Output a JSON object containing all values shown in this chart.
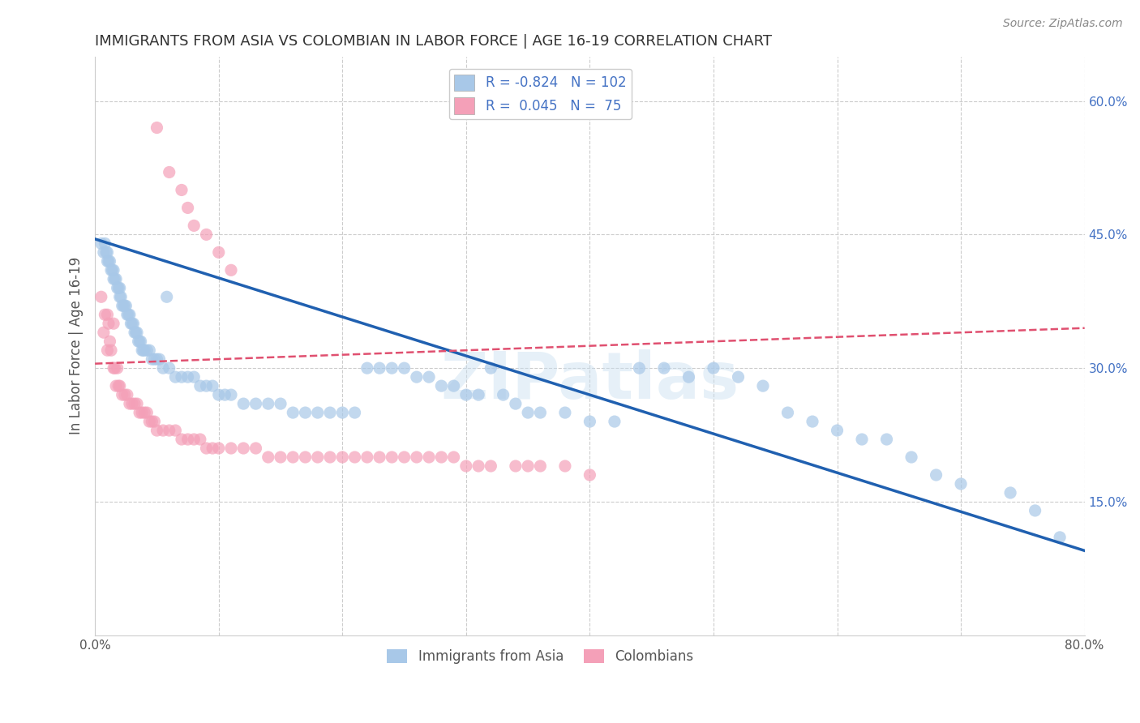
{
  "title": "IMMIGRANTS FROM ASIA VS COLOMBIAN IN LABOR FORCE | AGE 16-19 CORRELATION CHART",
  "source": "Source: ZipAtlas.com",
  "ylabel": "In Labor Force | Age 16-19",
  "xlim": [
    0.0,
    0.8
  ],
  "ylim": [
    0.0,
    0.65
  ],
  "xticks": [
    0.0,
    0.1,
    0.2,
    0.3,
    0.4,
    0.5,
    0.6,
    0.7,
    0.8
  ],
  "xticklabels": [
    "0.0%",
    "",
    "",
    "",
    "",
    "",
    "",
    "",
    "80.0%"
  ],
  "yticks_right": [
    0.15,
    0.3,
    0.45,
    0.6
  ],
  "ytick_right_labels": [
    "15.0%",
    "30.0%",
    "45.0%",
    "60.0%"
  ],
  "legend_blue_r": "-0.824",
  "legend_blue_n": "102",
  "legend_pink_r": "0.045",
  "legend_pink_n": "75",
  "blue_color": "#a8c8e8",
  "pink_color": "#f4a0b8",
  "blue_line_color": "#2060b0",
  "pink_line_color": "#e05070",
  "watermark": "ZIPatlas",
  "blue_trend_start_y": 0.445,
  "blue_trend_end_y": 0.095,
  "pink_trend_start_y": 0.305,
  "pink_trend_end_y": 0.345,
  "blue_scatter_x": [
    0.005,
    0.007,
    0.008,
    0.009,
    0.01,
    0.01,
    0.011,
    0.012,
    0.013,
    0.014,
    0.015,
    0.015,
    0.016,
    0.017,
    0.018,
    0.019,
    0.02,
    0.02,
    0.021,
    0.022,
    0.023,
    0.024,
    0.025,
    0.026,
    0.027,
    0.028,
    0.029,
    0.03,
    0.031,
    0.032,
    0.033,
    0.034,
    0.035,
    0.036,
    0.037,
    0.038,
    0.039,
    0.04,
    0.042,
    0.044,
    0.046,
    0.048,
    0.05,
    0.052,
    0.055,
    0.058,
    0.06,
    0.065,
    0.07,
    0.075,
    0.08,
    0.085,
    0.09,
    0.095,
    0.1,
    0.105,
    0.11,
    0.12,
    0.13,
    0.14,
    0.15,
    0.16,
    0.17,
    0.18,
    0.19,
    0.2,
    0.21,
    0.22,
    0.23,
    0.24,
    0.25,
    0.26,
    0.27,
    0.28,
    0.29,
    0.3,
    0.31,
    0.32,
    0.33,
    0.34,
    0.35,
    0.36,
    0.38,
    0.4,
    0.42,
    0.44,
    0.46,
    0.48,
    0.5,
    0.52,
    0.54,
    0.56,
    0.58,
    0.6,
    0.62,
    0.64,
    0.66,
    0.68,
    0.7,
    0.74,
    0.76,
    0.78
  ],
  "blue_scatter_y": [
    0.44,
    0.43,
    0.44,
    0.43,
    0.43,
    0.42,
    0.42,
    0.42,
    0.41,
    0.41,
    0.41,
    0.4,
    0.4,
    0.4,
    0.39,
    0.39,
    0.39,
    0.38,
    0.38,
    0.37,
    0.37,
    0.37,
    0.37,
    0.36,
    0.36,
    0.36,
    0.35,
    0.35,
    0.35,
    0.34,
    0.34,
    0.34,
    0.33,
    0.33,
    0.33,
    0.32,
    0.32,
    0.32,
    0.32,
    0.32,
    0.31,
    0.31,
    0.31,
    0.31,
    0.3,
    0.38,
    0.3,
    0.29,
    0.29,
    0.29,
    0.29,
    0.28,
    0.28,
    0.28,
    0.27,
    0.27,
    0.27,
    0.26,
    0.26,
    0.26,
    0.26,
    0.25,
    0.25,
    0.25,
    0.25,
    0.25,
    0.25,
    0.3,
    0.3,
    0.3,
    0.3,
    0.29,
    0.29,
    0.28,
    0.28,
    0.27,
    0.27,
    0.3,
    0.27,
    0.26,
    0.25,
    0.25,
    0.25,
    0.24,
    0.24,
    0.3,
    0.3,
    0.29,
    0.3,
    0.29,
    0.28,
    0.25,
    0.24,
    0.23,
    0.22,
    0.22,
    0.2,
    0.18,
    0.17,
    0.16,
    0.14,
    0.11
  ],
  "pink_scatter_x": [
    0.005,
    0.007,
    0.008,
    0.01,
    0.01,
    0.011,
    0.012,
    0.013,
    0.015,
    0.015,
    0.016,
    0.017,
    0.018,
    0.019,
    0.02,
    0.022,
    0.024,
    0.026,
    0.028,
    0.03,
    0.032,
    0.034,
    0.036,
    0.038,
    0.04,
    0.042,
    0.044,
    0.046,
    0.048,
    0.05,
    0.055,
    0.06,
    0.065,
    0.07,
    0.075,
    0.08,
    0.085,
    0.09,
    0.095,
    0.1,
    0.11,
    0.12,
    0.13,
    0.14,
    0.15,
    0.16,
    0.17,
    0.18,
    0.19,
    0.2,
    0.21,
    0.22,
    0.23,
    0.24,
    0.25,
    0.26,
    0.27,
    0.28,
    0.29,
    0.3,
    0.31,
    0.32,
    0.34,
    0.35,
    0.36,
    0.38,
    0.4,
    0.05,
    0.06,
    0.07,
    0.075,
    0.08,
    0.09,
    0.1,
    0.11
  ],
  "pink_scatter_y": [
    0.38,
    0.34,
    0.36,
    0.36,
    0.32,
    0.35,
    0.33,
    0.32,
    0.35,
    0.3,
    0.3,
    0.28,
    0.3,
    0.28,
    0.28,
    0.27,
    0.27,
    0.27,
    0.26,
    0.26,
    0.26,
    0.26,
    0.25,
    0.25,
    0.25,
    0.25,
    0.24,
    0.24,
    0.24,
    0.23,
    0.23,
    0.23,
    0.23,
    0.22,
    0.22,
    0.22,
    0.22,
    0.21,
    0.21,
    0.21,
    0.21,
    0.21,
    0.21,
    0.2,
    0.2,
    0.2,
    0.2,
    0.2,
    0.2,
    0.2,
    0.2,
    0.2,
    0.2,
    0.2,
    0.2,
    0.2,
    0.2,
    0.2,
    0.2,
    0.19,
    0.19,
    0.19,
    0.19,
    0.19,
    0.19,
    0.19,
    0.18,
    0.57,
    0.52,
    0.5,
    0.48,
    0.46,
    0.45,
    0.43,
    0.41
  ]
}
